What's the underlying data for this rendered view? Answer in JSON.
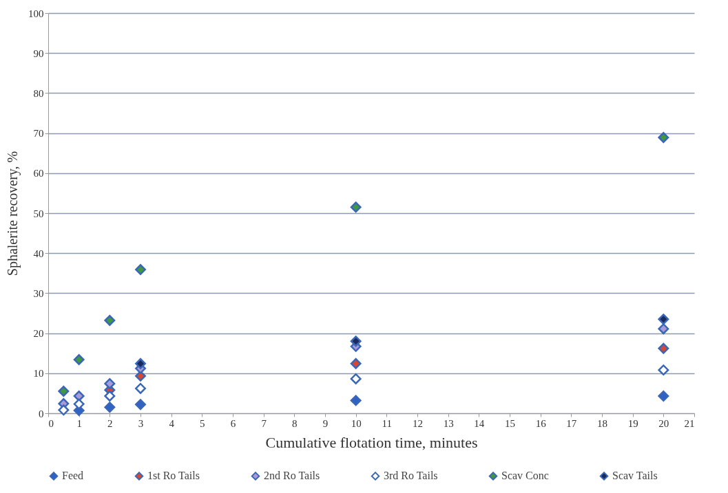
{
  "chart_data": {
    "type": "scatter",
    "xlabel": "Cumulative flotation time, minutes",
    "ylabel": "Sphalerite recovery, %",
    "x": [
      0.5,
      1,
      2,
      3,
      10,
      20
    ],
    "series": [
      {
        "name": "Feed",
        "color": "#2f62c4",
        "values": [
          null,
          0.7,
          1.5,
          2.2,
          3.2,
          4.3
        ]
      },
      {
        "name": "1st Ro Tails",
        "color": "#d8472f",
        "values": [
          null,
          null,
          5.8,
          9.3,
          12.4,
          16.2
        ]
      },
      {
        "name": "2nd Ro Tails",
        "color": "#a99ad8",
        "values": [
          2.4,
          4.3,
          7.4,
          11.2,
          16.7,
          21.1
        ]
      },
      {
        "name": "3rd Ro Tails",
        "color": "#ffffff",
        "values": [
          0.8,
          2.3,
          4.3,
          6.2,
          8.6,
          10.8
        ]
      },
      {
        "name": "Scav Conc",
        "color": "#3f9a3f",
        "values": [
          5.5,
          13.4,
          23.2,
          35.9,
          51.5,
          68.9
        ]
      },
      {
        "name": "Scav Tails",
        "color": "#1a2a5a",
        "values": [
          null,
          null,
          null,
          12.4,
          18.0,
          23.5
        ]
      }
    ],
    "xlim": [
      0,
      21
    ],
    "xticks": [
      0,
      1,
      2,
      3,
      4,
      5,
      6,
      7,
      8,
      9,
      10,
      11,
      12,
      13,
      14,
      15,
      16,
      17,
      18,
      19,
      20,
      21
    ],
    "ylim": [
      0,
      100
    ],
    "yticks": [
      0,
      10,
      20,
      30,
      40,
      50,
      60,
      70,
      80,
      90,
      100
    ],
    "grid": "y",
    "legend": "bottom",
    "marker": "diamond"
  }
}
